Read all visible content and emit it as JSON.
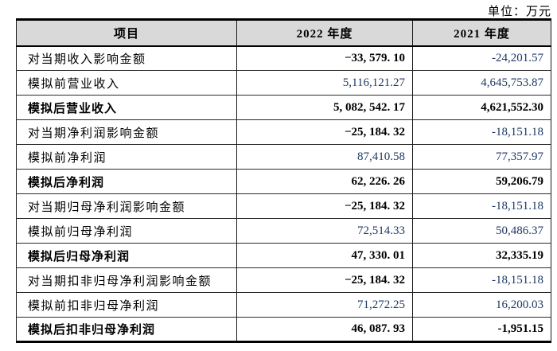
{
  "unit_label": "单位：万元",
  "colors": {
    "header_bg": "#d9d9d9",
    "regular_number": "#1f3864",
    "bold_number": "#000000",
    "border": "#000000"
  },
  "table": {
    "headers": [
      "项目",
      "2022 年度",
      "2021 年度"
    ],
    "rows": [
      {
        "label": "对当期收入影响金额",
        "v2022": "−33, 579. 10",
        "v2021": "-24,201.57",
        "bold_label": false,
        "bold_2022": true,
        "bold_2021": false
      },
      {
        "label": "模拟前营业收入",
        "v2022": "5,116,121.27",
        "v2021": "4,645,753.87",
        "bold_label": false,
        "bold_2022": false,
        "bold_2021": false
      },
      {
        "label": "模拟后营业收入",
        "v2022": "5, 082, 542. 17",
        "v2021": "4,621,552.30",
        "bold_label": true,
        "bold_2022": true,
        "bold_2021": true
      },
      {
        "label": "对当期净利润影响金额",
        "v2022": "−25, 184. 32",
        "v2021": "-18,151.18",
        "bold_label": false,
        "bold_2022": true,
        "bold_2021": false
      },
      {
        "label": "模拟前净利润",
        "v2022": "87,410.58",
        "v2021": "77,357.97",
        "bold_label": false,
        "bold_2022": false,
        "bold_2021": false
      },
      {
        "label": "模拟后净利润",
        "v2022": "62, 226. 26",
        "v2021": "59,206.79",
        "bold_label": true,
        "bold_2022": true,
        "bold_2021": true
      },
      {
        "label": "对当期归母净利润影响金额",
        "v2022": "−25, 184. 32",
        "v2021": "-18,151.18",
        "bold_label": false,
        "bold_2022": true,
        "bold_2021": false
      },
      {
        "label": "模拟前归母净利润",
        "v2022": "72,514.33",
        "v2021": "50,486.37",
        "bold_label": false,
        "bold_2022": false,
        "bold_2021": false
      },
      {
        "label": "模拟后归母净利润",
        "v2022": "47, 330. 01",
        "v2021": "32,335.19",
        "bold_label": true,
        "bold_2022": true,
        "bold_2021": true
      },
      {
        "label": "对当期扣非归母净利润影响金额",
        "v2022": "−25, 184. 32",
        "v2021": "-18,151.18",
        "bold_label": false,
        "bold_2022": true,
        "bold_2021": false
      },
      {
        "label": "模拟前扣非归母净利润",
        "v2022": "71,272.25",
        "v2021": "16,200.03",
        "bold_label": false,
        "bold_2022": false,
        "bold_2021": false
      },
      {
        "label": "模拟后扣非归母净利润",
        "v2022": "46, 087. 93",
        "v2021": "-1,951.15",
        "bold_label": true,
        "bold_2022": true,
        "bold_2021": true
      }
    ]
  }
}
